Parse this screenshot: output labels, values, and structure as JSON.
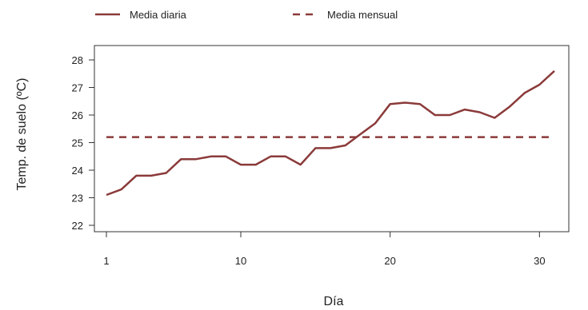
{
  "chart_data": {
    "type": "line",
    "xlabel": "Día",
    "ylabel": "Temp. de suelo (ºC)",
    "xlim": [
      1,
      31
    ],
    "ylim": [
      22,
      28
    ],
    "x_ticks": [
      1,
      10,
      20,
      30
    ],
    "y_ticks": [
      22,
      23,
      24,
      25,
      26,
      27,
      28
    ],
    "grid": false,
    "legend_position": "top",
    "series": [
      {
        "name": "Media diaria",
        "style": "solid",
        "color": "#8B3A3A",
        "x": [
          1,
          2,
          3,
          4,
          5,
          6,
          7,
          8,
          9,
          10,
          11,
          12,
          13,
          14,
          15,
          16,
          17,
          18,
          19,
          20,
          21,
          22,
          23,
          24,
          25,
          26,
          27,
          28,
          29,
          30,
          31
        ],
        "values": [
          23.1,
          23.3,
          23.8,
          23.8,
          23.9,
          24.4,
          24.4,
          24.5,
          24.5,
          24.2,
          24.2,
          24.5,
          24.5,
          24.2,
          24.8,
          24.8,
          24.9,
          25.3,
          25.7,
          26.4,
          26.45,
          26.4,
          26.0,
          26.0,
          26.2,
          26.1,
          25.9,
          26.3,
          26.8,
          27.1,
          27.6
        ]
      },
      {
        "name": "Media mensual",
        "style": "dashed",
        "color": "#8B3A3A",
        "x": [
          1,
          31
        ],
        "values": [
          25.2,
          25.2
        ]
      }
    ]
  }
}
